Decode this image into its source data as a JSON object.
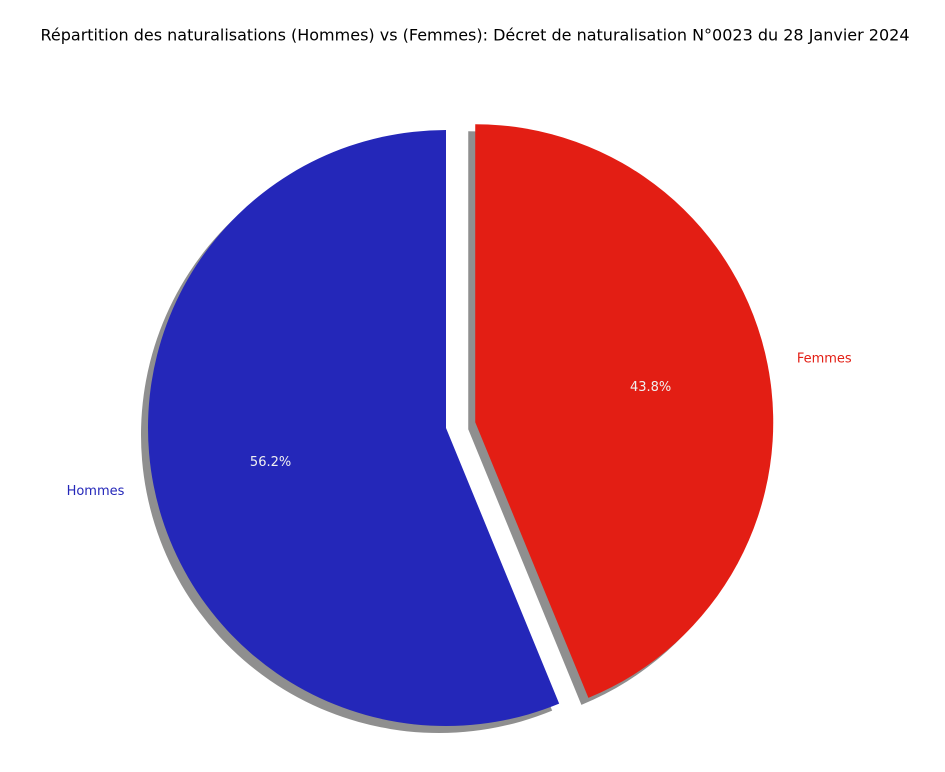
{
  "chart_data": {
    "type": "pie",
    "title": "Répartition des naturalisations (Hommes) vs (Femmes): Décret de naturalisation N°0023 du 28 Janvier 2024",
    "categories": [
      "Hommes",
      "Femmes"
    ],
    "values": [
      56.2,
      43.8
    ],
    "value_labels": [
      "56.2%",
      "43.8%"
    ],
    "colors": [
      "#2427b9",
      "#e31e14"
    ],
    "shadow": true
  }
}
